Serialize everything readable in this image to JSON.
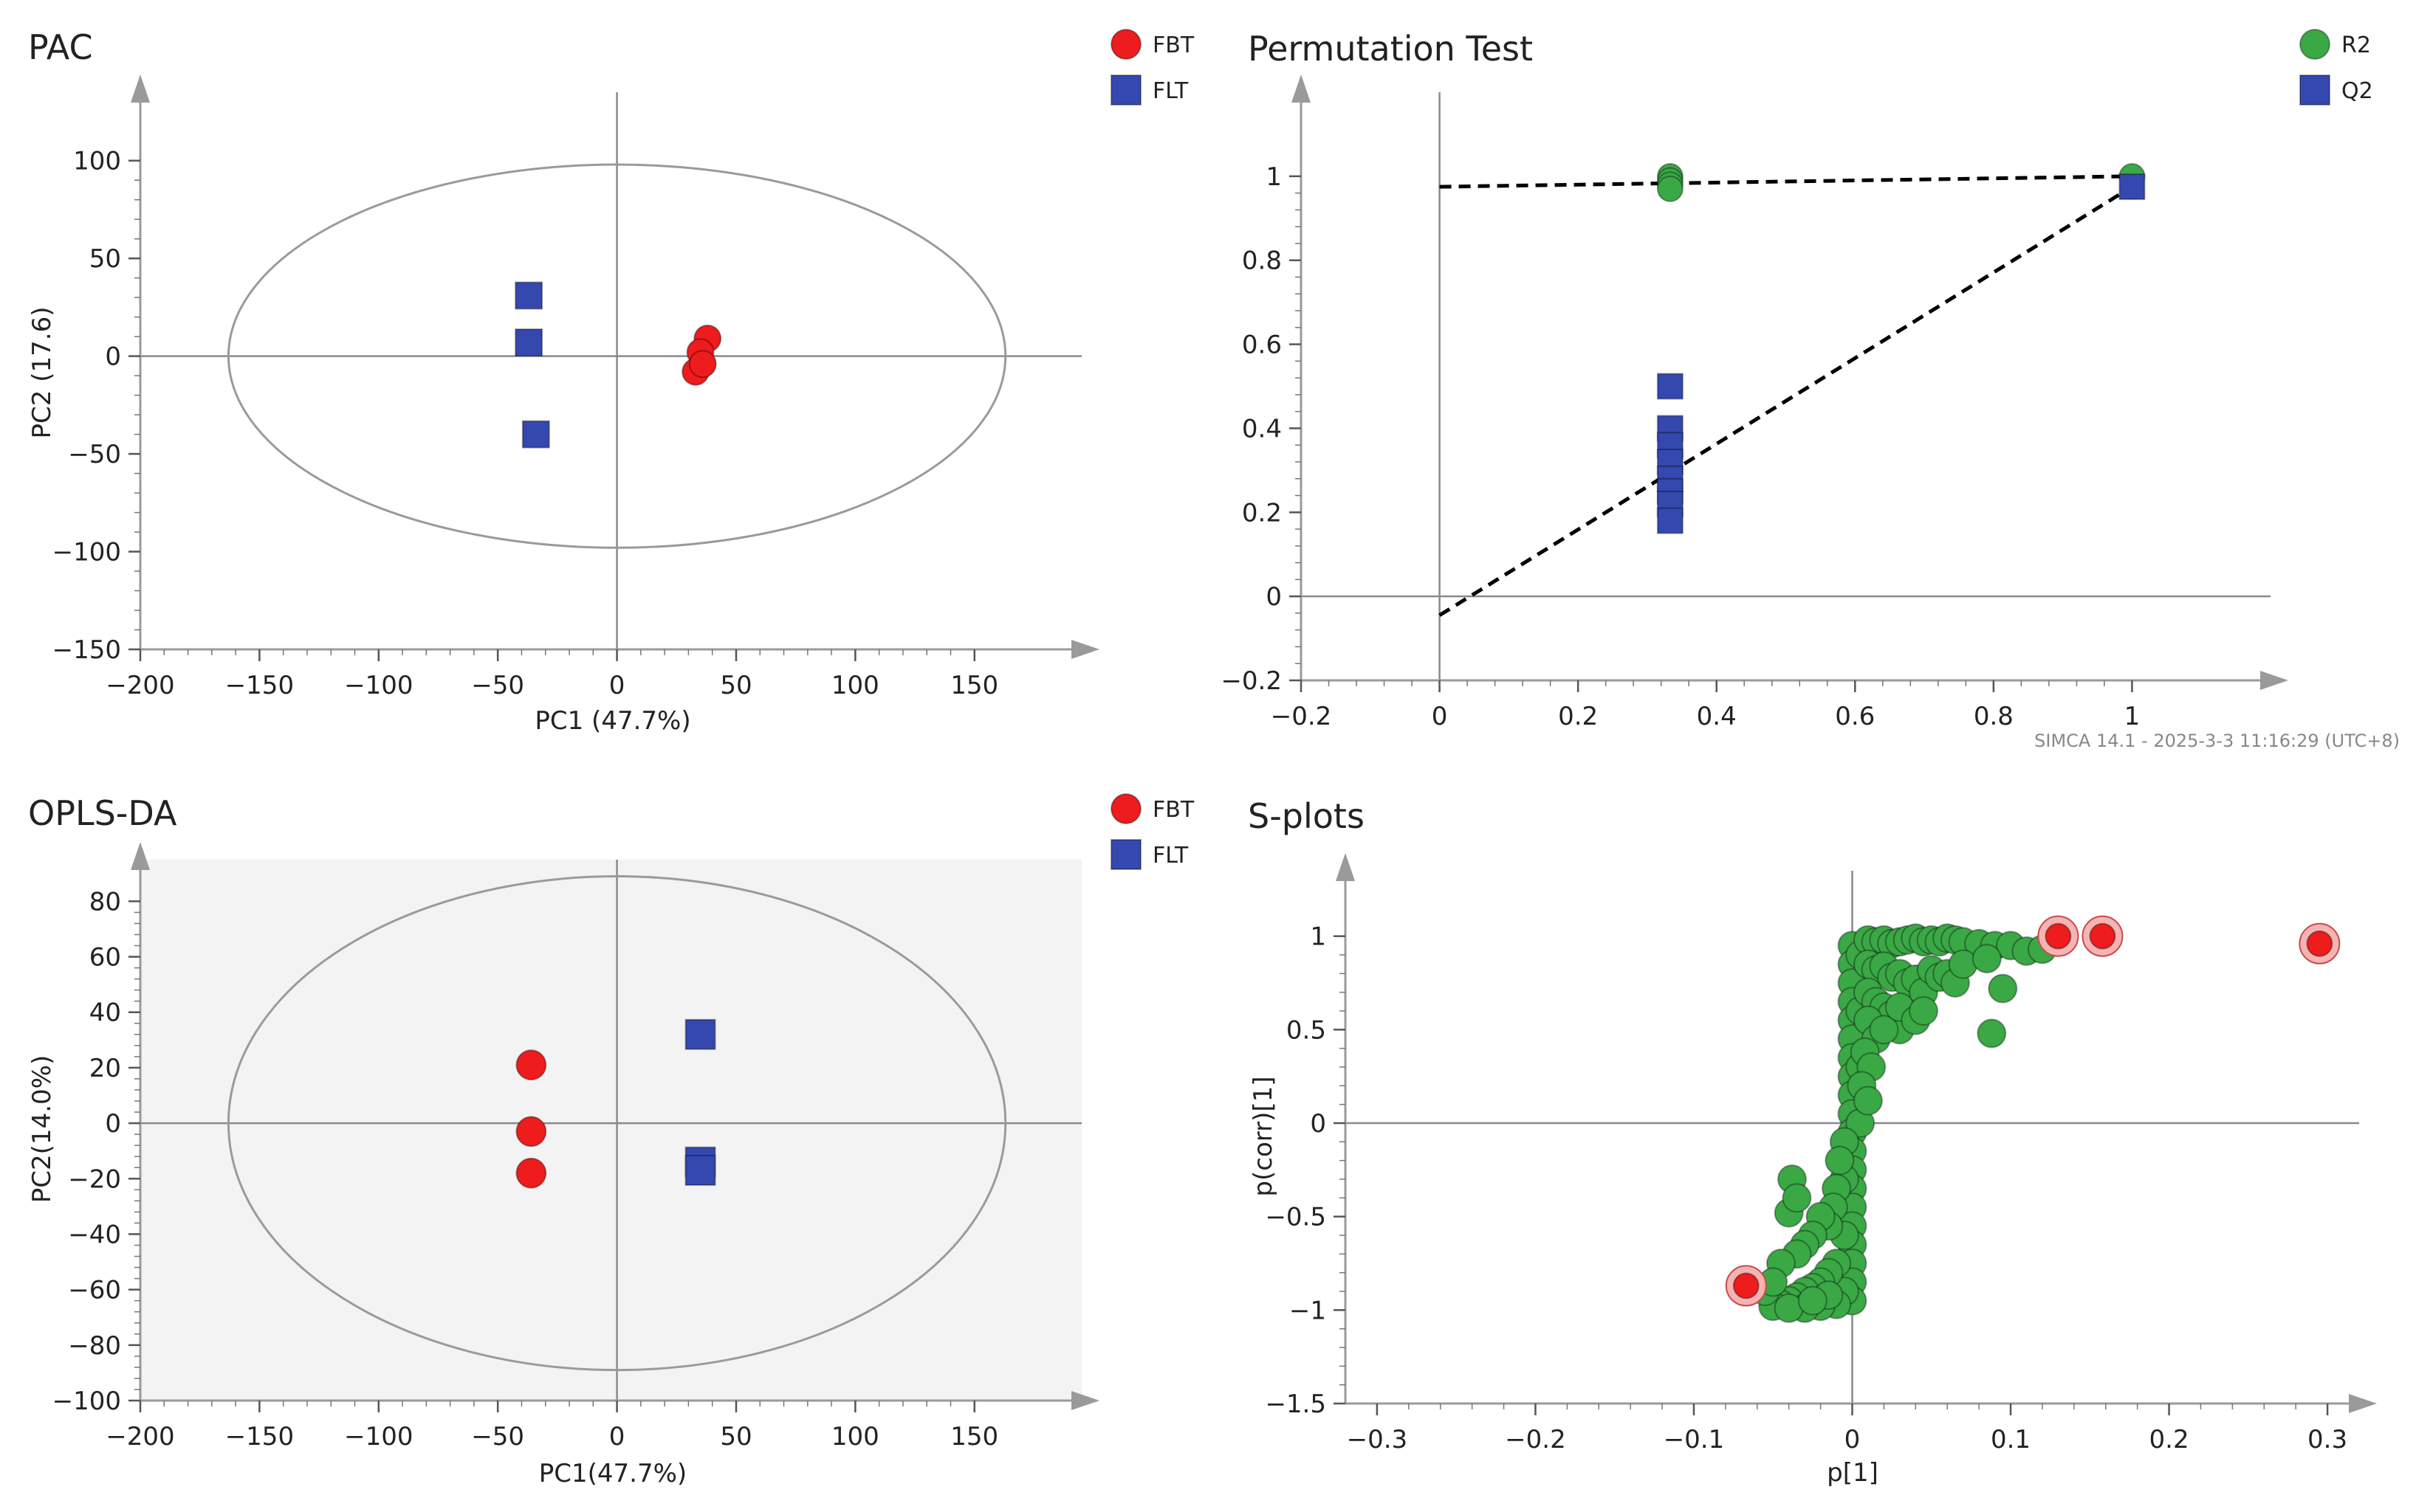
{
  "chart_data": [
    {
      "id": "pca",
      "type": "scatter",
      "title": "PAC",
      "xlabel": "PC1  (47.7%)",
      "ylabel": "PC2  (17.6)",
      "xlim": [
        -200,
        195
      ],
      "ylim": [
        -150,
        135
      ],
      "xticks": [
        -200,
        -150,
        -100,
        -50,
        0,
        50,
        100,
        150
      ],
      "yticks": [
        -150,
        -100,
        -50,
        0,
        50,
        100
      ],
      "xtick_labels": [
        "−200",
        "−150",
        "−100",
        "−50",
        "0",
        "50",
        "100",
        "150"
      ],
      "ytick_labels": [
        "−150",
        "−100",
        "−50",
        "0",
        "50",
        "100"
      ],
      "ellipse": {
        "cx": 0,
        "cy": 0,
        "rx": 163,
        "ry": 98
      },
      "background": "#ffffff",
      "legend": [
        {
          "label": "FBT",
          "shape": "circle",
          "color": "#ee1c1c"
        },
        {
          "label": "FLT",
          "shape": "square",
          "color": "#3448b0"
        }
      ],
      "series": [
        {
          "name": "FBT",
          "shape": "circle",
          "color": "#ee1c1c",
          "points": [
            [
              38,
              9
            ],
            [
              35,
              2
            ],
            [
              33,
              -8
            ],
            [
              36,
              -4
            ]
          ]
        },
        {
          "name": "FLT",
          "shape": "square",
          "color": "#3448b0",
          "points": [
            [
              -37,
              31
            ],
            [
              -37,
              7
            ],
            [
              -34,
              -40
            ]
          ]
        }
      ]
    },
    {
      "id": "perm",
      "type": "scatter",
      "title": "Permutation Test",
      "xlabel": "",
      "ylabel": "",
      "xlim": [
        -0.2,
        1.2
      ],
      "ylim": [
        -0.2,
        1.2
      ],
      "xticks": [
        -0.2,
        0,
        0.2,
        0.4,
        0.6,
        0.8,
        1
      ],
      "yticks": [
        -0.2,
        0,
        0.2,
        0.4,
        0.6,
        0.8,
        1
      ],
      "xtick_labels": [
        "−0.2",
        "0",
        "0.2",
        "0.4",
        "0.6",
        "0.8",
        "1"
      ],
      "ytick_labels": [
        "−0.2",
        "0",
        "0.2",
        "0.4",
        "0.6",
        "0.8",
        "1"
      ],
      "background": "#ffffff",
      "legend": [
        {
          "label": "R2",
          "shape": "circle",
          "color": "#3aa845"
        },
        {
          "label": "Q2",
          "shape": "square",
          "color": "#3448b0"
        }
      ],
      "series": [
        {
          "name": "R2",
          "shape": "circle",
          "color": "#3aa845",
          "points": [
            [
              0.333,
              1.0
            ],
            [
              0.333,
              0.99
            ],
            [
              0.333,
              0.98
            ],
            [
              0.333,
              0.97
            ],
            [
              1.0,
              1.0
            ]
          ]
        },
        {
          "name": "Q2",
          "shape": "square",
          "color": "#3448b0",
          "points": [
            [
              0.333,
              0.5
            ],
            [
              0.333,
              0.4
            ],
            [
              0.333,
              0.36
            ],
            [
              0.333,
              0.32
            ],
            [
              0.333,
              0.28
            ],
            [
              0.333,
              0.25
            ],
            [
              0.333,
              0.22
            ],
            [
              0.333,
              0.18
            ],
            [
              1.0,
              0.975
            ]
          ]
        }
      ],
      "regression_lines": [
        {
          "name": "R2 intercept line",
          "from": [
            0,
            0.975
          ],
          "to": [
            1,
            1.0
          ]
        },
        {
          "name": "Q2 intercept line",
          "from": [
            0,
            -0.045
          ],
          "to": [
            1,
            0.975
          ]
        }
      ],
      "footer": "SIMCA 14.1 - 2025-3-3 11:16:29 (UTC+8)"
    },
    {
      "id": "oplsda",
      "type": "scatter",
      "title": "OPLS-DA",
      "xlabel": "PC1(47.7%)",
      "ylabel": "PC2(14.0%)",
      "xlim": [
        -200,
        195
      ],
      "ylim": [
        -100,
        95
      ],
      "xticks": [
        -200,
        -150,
        -100,
        -50,
        0,
        50,
        100,
        150
      ],
      "yticks": [
        -100,
        -80,
        -60,
        -40,
        -20,
        0,
        20,
        40,
        60,
        80
      ],
      "xtick_labels": [
        "−200",
        "−150",
        "−100",
        "−50",
        "0",
        "50",
        "100",
        "150"
      ],
      "ytick_labels": [
        "−100",
        "−80",
        "−60",
        "−40",
        "−20",
        "0",
        "20",
        "40",
        "60",
        "80"
      ],
      "ellipse": {
        "cx": 0,
        "cy": 0,
        "rx": 163,
        "ry": 89
      },
      "background": "#f3f3f3",
      "legend": [
        {
          "label": "FBT",
          "shape": "circle",
          "color": "#ee1c1c"
        },
        {
          "label": "FLT",
          "shape": "square",
          "color": "#3448b0"
        }
      ],
      "series": [
        {
          "name": "FBT",
          "shape": "circle",
          "color": "#ee1c1c",
          "points": [
            [
              -36,
              21
            ],
            [
              -36,
              -3
            ],
            [
              -36,
              -18
            ]
          ]
        },
        {
          "name": "FLT",
          "shape": "square",
          "color": "#3448b0",
          "points": [
            [
              35,
              32
            ],
            [
              35,
              -14
            ],
            [
              35,
              -17
            ]
          ]
        }
      ]
    },
    {
      "id": "splot",
      "type": "scatter",
      "title": "S-plots",
      "xlabel": "p[1]",
      "ylabel": "p(corr)[1]",
      "xlim": [
        -0.32,
        0.32
      ],
      "ylim": [
        -1.5,
        1.35
      ],
      "xticks": [
        -0.3,
        -0.2,
        -0.1,
        0,
        0.1,
        0.2,
        0.3
      ],
      "yticks": [
        -1.5,
        -1,
        -0.5,
        0,
        0.5,
        1
      ],
      "xtick_labels": [
        "−0.3",
        "−0.2",
        "−0.1",
        "0",
        "0.1",
        "0.2",
        "0.3"
      ],
      "ytick_labels": [
        "−1.5",
        "−1",
        "−0.5",
        "0",
        "0.5",
        "1"
      ],
      "background": "#ffffff",
      "series": [
        {
          "name": "Variables",
          "shape": "circle",
          "color": "#3aa845",
          "points": [
            [
              0.0,
              0.95
            ],
            [
              0.0,
              0.85
            ],
            [
              0.0,
              0.75
            ],
            [
              0.0,
              0.65
            ],
            [
              0.0,
              0.55
            ],
            [
              0.0,
              0.45
            ],
            [
              0.0,
              0.35
            ],
            [
              0.0,
              0.25
            ],
            [
              0.0,
              0.15
            ],
            [
              0.0,
              0.05
            ],
            [
              0.0,
              -0.05
            ],
            [
              0.0,
              -0.15
            ],
            [
              0.0,
              -0.25
            ],
            [
              0.0,
              -0.35
            ],
            [
              0.0,
              -0.45
            ],
            [
              0.0,
              -0.55
            ],
            [
              0.0,
              -0.65
            ],
            [
              0.0,
              -0.75
            ],
            [
              0.0,
              -0.85
            ],
            [
              0.0,
              -0.95
            ],
            [
              0.005,
              0.9
            ],
            [
              0.005,
              0.6
            ],
            [
              0.005,
              0.3
            ],
            [
              0.005,
              0.0
            ],
            [
              -0.005,
              -0.3
            ],
            [
              -0.005,
              -0.6
            ],
            [
              -0.005,
              -0.9
            ],
            [
              0.01,
              0.98
            ],
            [
              0.015,
              0.97
            ],
            [
              0.02,
              0.98
            ],
            [
              0.025,
              0.96
            ],
            [
              0.03,
              0.97
            ],
            [
              0.035,
              0.98
            ],
            [
              0.04,
              0.99
            ],
            [
              0.045,
              0.97
            ],
            [
              0.05,
              0.98
            ],
            [
              0.055,
              0.97
            ],
            [
              0.06,
              0.99
            ],
            [
              0.065,
              0.98
            ],
            [
              0.07,
              0.97
            ],
            [
              0.08,
              0.96
            ],
            [
              0.09,
              0.95
            ],
            [
              0.1,
              0.95
            ],
            [
              0.11,
              0.92
            ],
            [
              0.12,
              0.93
            ],
            [
              0.01,
              0.85
            ],
            [
              0.015,
              0.82
            ],
            [
              0.02,
              0.84
            ],
            [
              0.025,
              0.78
            ],
            [
              0.03,
              0.8
            ],
            [
              0.035,
              0.75
            ],
            [
              0.04,
              0.77
            ],
            [
              0.045,
              0.7
            ],
            [
              0.05,
              0.82
            ],
            [
              0.055,
              0.78
            ],
            [
              0.06,
              0.8
            ],
            [
              0.065,
              0.75
            ],
            [
              0.07,
              0.85
            ],
            [
              0.085,
              0.88
            ],
            [
              0.095,
              0.72
            ],
            [
              0.088,
              0.48
            ],
            [
              0.01,
              0.7
            ],
            [
              0.015,
              0.65
            ],
            [
              0.02,
              0.62
            ],
            [
              0.025,
              0.58
            ],
            [
              0.03,
              0.5
            ],
            [
              0.01,
              0.55
            ],
            [
              0.015,
              0.45
            ],
            [
              0.02,
              0.5
            ],
            [
              0.03,
              0.62
            ],
            [
              0.04,
              0.55
            ],
            [
              0.045,
              0.6
            ],
            [
              0.008,
              0.38
            ],
            [
              0.012,
              0.3
            ],
            [
              0.006,
              0.2
            ],
            [
              0.01,
              0.12
            ],
            [
              -0.005,
              -0.1
            ],
            [
              -0.008,
              -0.2
            ],
            [
              -0.01,
              -0.35
            ],
            [
              -0.012,
              -0.45
            ],
            [
              -0.015,
              -0.55
            ],
            [
              -0.02,
              -0.5
            ],
            [
              -0.025,
              -0.6
            ],
            [
              -0.03,
              -0.65
            ],
            [
              -0.035,
              -0.7
            ],
            [
              -0.01,
              -0.75
            ],
            [
              -0.015,
              -0.8
            ],
            [
              -0.02,
              -0.85
            ],
            [
              -0.025,
              -0.88
            ],
            [
              -0.03,
              -0.9
            ],
            [
              -0.035,
              -0.93
            ],
            [
              -0.04,
              -0.95
            ],
            [
              -0.045,
              -0.97
            ],
            [
              -0.05,
              -0.98
            ],
            [
              -0.01,
              -0.97
            ],
            [
              -0.02,
              -0.98
            ],
            [
              -0.03,
              -0.99
            ],
            [
              -0.04,
              -0.99
            ],
            [
              -0.015,
              -0.92
            ],
            [
              -0.025,
              -0.95
            ],
            [
              -0.04,
              -0.48
            ],
            [
              -0.038,
              -0.3
            ],
            [
              -0.045,
              -0.75
            ],
            [
              -0.055,
              -0.9
            ],
            [
              -0.05,
              -0.85
            ],
            [
              -0.035,
              -0.4
            ]
          ]
        },
        {
          "name": "Highlighted",
          "shape": "circle",
          "color": "#ee1c1c",
          "points": [
            [
              0.13,
              1.0
            ],
            [
              0.158,
              1.0
            ],
            [
              0.295,
              0.96
            ],
            [
              -0.067,
              -0.87
            ]
          ]
        }
      ]
    }
  ]
}
